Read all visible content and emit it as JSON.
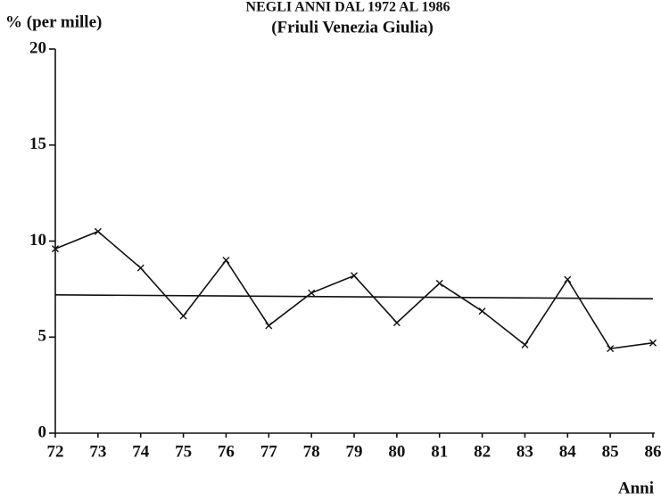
{
  "chart_data": {
    "type": "line",
    "title": "NEGLI ANNI DAL 1972 AL 1986",
    "subtitle": "(Friuli Venezia Giulia)",
    "y_label": "% (per mille)",
    "x_label": "Anni",
    "x": [
      72,
      73,
      74,
      75,
      76,
      77,
      78,
      79,
      80,
      81,
      82,
      83,
      84,
      85,
      86
    ],
    "series": [
      {
        "color": "#111111",
        "markers": true,
        "values": [
          9.6,
          10.5,
          8.6,
          6.1,
          9.0,
          5.6,
          7.3,
          8.2,
          5.75,
          7.8,
          6.35,
          4.6,
          8.0,
          4.4,
          4.7
        ]
      },
      {
        "color": "#111111",
        "markers": false,
        "x": [
          72,
          86
        ],
        "values": [
          7.2,
          7.0
        ]
      }
    ],
    "xlim": [
      72,
      86
    ],
    "ylim": [
      0,
      20
    ],
    "xticks": [
      72,
      73,
      74,
      75,
      76,
      77,
      78,
      79,
      80,
      81,
      82,
      83,
      84,
      85,
      86
    ],
    "yticks": [
      0,
      5,
      10,
      15,
      20
    ],
    "grid": false
  }
}
